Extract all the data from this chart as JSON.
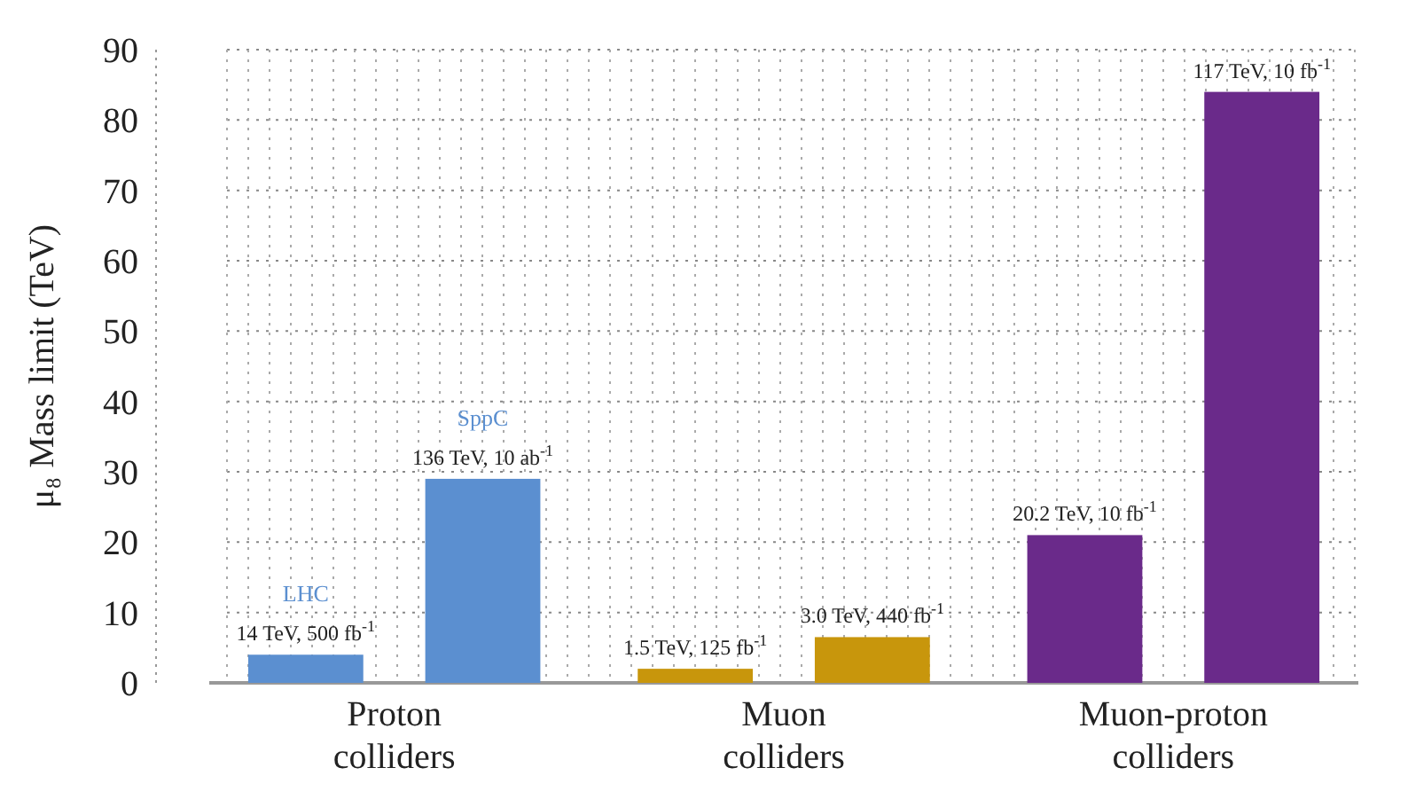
{
  "chart_data": {
    "type": "bar",
    "ylabel": "μ₈ Mass limit (TeV)",
    "categories": [
      "Proton colliders",
      "Muon colliders",
      "Muon-proton colliders"
    ],
    "series": [
      {
        "colors": [
          "#5b8fd0",
          "#c8960c",
          "#6a2a8a"
        ],
        "values": [
          4,
          2,
          21
        ]
      },
      {
        "colors": [
          "#5b8fd0",
          "#c8960c",
          "#6a2a8a"
        ],
        "values": [
          29,
          6.5,
          84
        ]
      }
    ],
    "annotations": [
      "14 TeV, 500 fb$^{-1}$",
      "136 TeV, 10 ab$^{-1}$",
      "1.5 TeV, 125 fb$^{-1}$",
      "3.0 TeV, 440 fb$^{-1}$",
      "20.2 TeV, 10 fb$^{-1}$",
      "117 TeV, 10 fb$^{-1}$",
      "LHC",
      "SppC"
    ],
    "ylim": [
      0,
      90
    ],
    "yticks": [
      0,
      10,
      20,
      30,
      40,
      50,
      60,
      70,
      80,
      90
    ],
    "grid": true
  }
}
